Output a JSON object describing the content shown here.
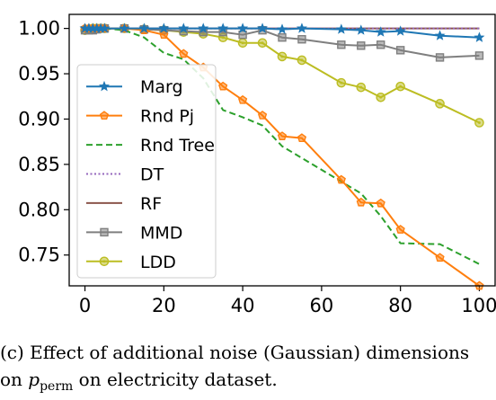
{
  "chart_data": {
    "type": "line",
    "title": "",
    "xlabel": "",
    "ylabel": "",
    "xlim": [
      -4,
      104
    ],
    "ylim": [
      0.716,
      1.0155
    ],
    "xticks": [
      "0",
      "20",
      "40",
      "60",
      "80",
      "100"
    ],
    "yticks": [
      "0.75",
      "0.80",
      "0.85",
      "0.90",
      "0.95",
      "1.00"
    ],
    "grid": false,
    "legend_position": "left",
    "series": [
      {
        "name": "Marg",
        "color": "#1f77b4",
        "marker": "star",
        "linestyle": "solid",
        "x": [
          0,
          1,
          2,
          3,
          4,
          5,
          10,
          15,
          20,
          25,
          30,
          35,
          40,
          45,
          50,
          55,
          65,
          70,
          75,
          80,
          90,
          100
        ],
        "y": [
          1.0,
          1.0,
          1.0,
          1.0,
          1.0,
          1.0,
          1.0,
          1.0,
          1.0,
          1.0,
          1.0,
          1.0,
          1.0,
          1.0,
          0.999,
          1.0,
          0.999,
          0.998,
          0.996,
          0.997,
          0.992,
          0.99
        ]
      },
      {
        "name": "Rnd Pj",
        "color": "#ff7f0e",
        "marker": "pentagon",
        "linestyle": "solid",
        "x": [
          0,
          1,
          2,
          3,
          4,
          5,
          10,
          15,
          20,
          25,
          30,
          35,
          40,
          45,
          50,
          55,
          65,
          70,
          75,
          80,
          90,
          100
        ],
        "y": [
          1.0,
          1.0,
          1.0,
          1.0,
          1.0,
          1.0,
          1.0,
          0.998,
          0.993,
          0.972,
          0.957,
          0.936,
          0.921,
          0.904,
          0.881,
          0.879,
          0.833,
          0.808,
          0.807,
          0.778,
          0.747,
          0.716
        ]
      },
      {
        "name": "Rnd Tree",
        "color": "#2ca02c",
        "marker": "none",
        "linestyle": "dashed",
        "x": [
          0,
          5,
          10,
          15,
          20,
          25,
          30,
          35,
          40,
          45,
          50,
          55,
          65,
          70,
          75,
          80,
          90,
          100
        ],
        "y": [
          1.0,
          1.0,
          0.998,
          0.99,
          0.973,
          0.966,
          0.945,
          0.91,
          0.902,
          0.893,
          0.87,
          0.857,
          0.831,
          0.818,
          0.793,
          0.763,
          0.762,
          0.74
        ]
      },
      {
        "name": "DT",
        "color": "#9467bd",
        "marker": "none",
        "linestyle": "dotted",
        "x": [
          0,
          100
        ],
        "y": [
          1.0,
          1.0
        ]
      },
      {
        "name": "RF",
        "color": "#8c564b",
        "marker": "none",
        "linestyle": "solid",
        "x": [
          0,
          100
        ],
        "y": [
          1.0,
          1.0
        ]
      },
      {
        "name": "MMD",
        "color": "#7f7f7f",
        "marker": "square",
        "linestyle": "solid",
        "x": [
          0,
          1,
          2,
          3,
          4,
          5,
          10,
          15,
          20,
          25,
          30,
          35,
          40,
          45,
          50,
          55,
          65,
          70,
          75,
          80,
          90,
          100
        ],
        "y": [
          0.998,
          0.998,
          0.998,
          0.999,
          1.0,
          1.0,
          1.0,
          0.999,
          0.998,
          0.997,
          0.996,
          0.996,
          0.993,
          0.998,
          0.99,
          0.988,
          0.982,
          0.981,
          0.982,
          0.976,
          0.968,
          0.97
        ]
      },
      {
        "name": "LDD",
        "color": "#bcbd22",
        "marker": "hexcircle",
        "linestyle": "solid",
        "x": [
          0,
          1,
          2,
          3,
          4,
          5,
          10,
          15,
          20,
          25,
          30,
          35,
          40,
          45,
          50,
          55,
          65,
          70,
          75,
          80,
          90,
          100
        ],
        "y": [
          0.998,
          0.999,
          1.0,
          1.0,
          1.0,
          1.0,
          1.0,
          0.999,
          0.998,
          0.996,
          0.994,
          0.99,
          0.984,
          0.984,
          0.969,
          0.965,
          0.94,
          0.935,
          0.924,
          0.936,
          0.917,
          0.896
        ]
      }
    ]
  },
  "caption": {
    "line1": "(c) Effect of additional noise (Gaussian) dimensions",
    "line2_prefix": "on ",
    "line2_symbol": "p",
    "line2_subscript": "perm",
    "line2_suffix": " on electricity dataset."
  }
}
